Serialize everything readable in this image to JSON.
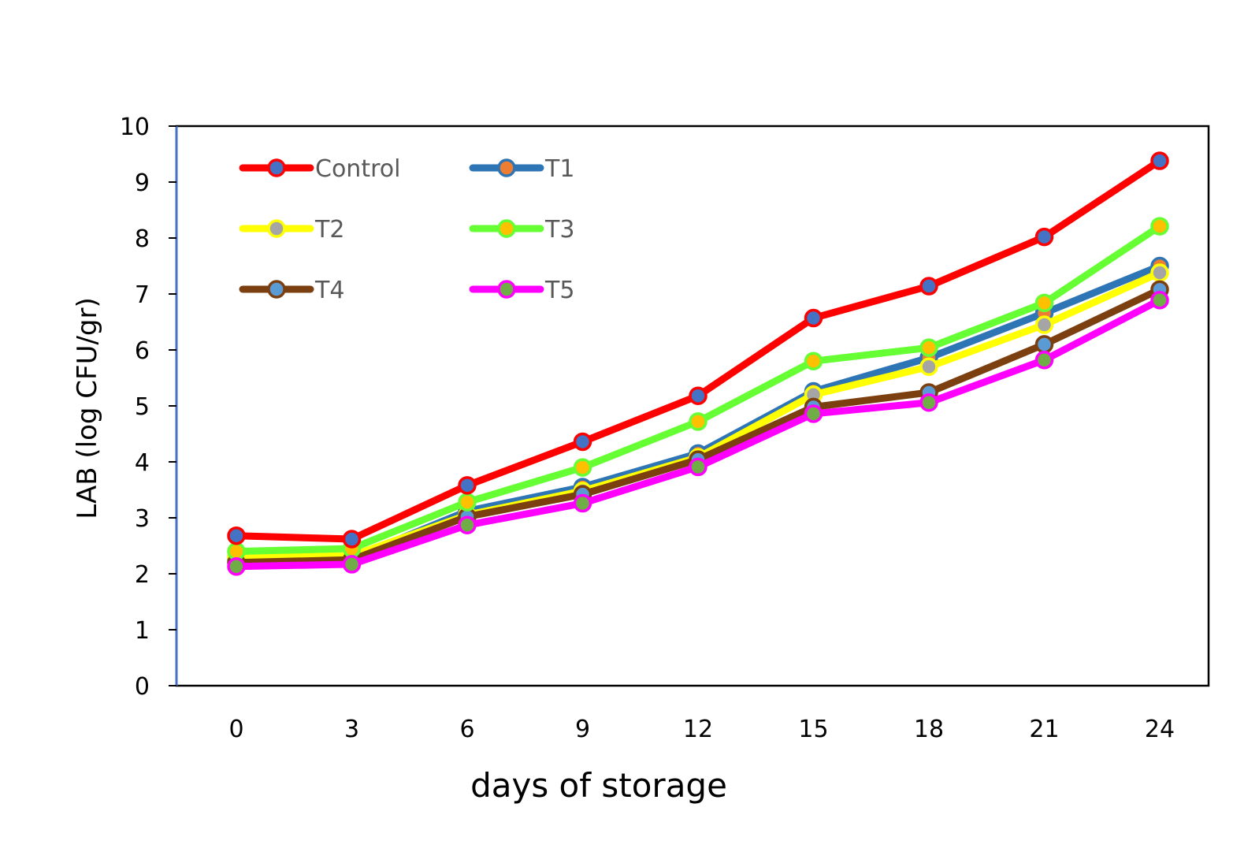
{
  "chart_data": {
    "type": "line",
    "xlabel": "days of storage",
    "ylabel": "LAB (log CFU/gr)",
    "x": [
      0,
      3,
      6,
      9,
      12,
      15,
      18,
      21,
      24
    ],
    "x_tick_labels": [
      "0",
      "3",
      "6",
      "9",
      "12",
      "15",
      "18",
      "21",
      "24"
    ],
    "ylim": [
      0,
      10
    ],
    "y_tick_labels": [
      "0",
      "1",
      "2",
      "3",
      "4",
      "5",
      "6",
      "7",
      "8",
      "9",
      "10"
    ],
    "grid": false,
    "legend_position": "top-left",
    "series": [
      {
        "name": "Control",
        "color": "#ff0000",
        "marker_color": "#4472c4",
        "values": [
          2.68,
          2.62,
          3.58,
          4.36,
          5.18,
          6.57,
          7.14,
          8.02,
          9.38
        ]
      },
      {
        "name": "T1",
        "color": "#2e75b6",
        "marker_color": "#ed7d31",
        "values": [
          2.26,
          2.27,
          3.12,
          3.55,
          4.15,
          5.26,
          5.86,
          6.66,
          7.5
        ]
      },
      {
        "name": "T2",
        "color": "#ffff00",
        "marker_color": "#a5a5a5",
        "values": [
          2.3,
          2.32,
          3.05,
          3.48,
          4.08,
          5.2,
          5.7,
          6.45,
          7.38
        ]
      },
      {
        "name": "T3",
        "color": "#66ff33",
        "marker_color": "#ffc000",
        "values": [
          2.4,
          2.45,
          3.28,
          3.9,
          4.72,
          5.8,
          6.04,
          6.84,
          8.21
        ]
      },
      {
        "name": "T4",
        "color": "#7b3f10",
        "marker_color": "#5b9bd5",
        "values": [
          2.2,
          2.25,
          3.02,
          3.42,
          4.04,
          4.98,
          5.24,
          6.1,
          7.08
        ]
      },
      {
        "name": "T5",
        "color": "#ff00ff",
        "marker_color": "#70ad47",
        "values": [
          2.13,
          2.17,
          2.87,
          3.26,
          3.91,
          4.86,
          5.06,
          5.82,
          6.89
        ]
      }
    ]
  }
}
